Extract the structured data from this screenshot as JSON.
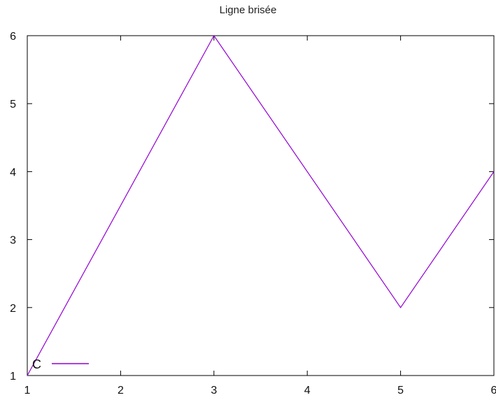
{
  "chart_data": {
    "type": "line",
    "title": "Ligne brisée",
    "xlabel": "",
    "ylabel": "",
    "xlim": [
      1,
      6
    ],
    "ylim": [
      1,
      6
    ],
    "x_ticks": [
      1,
      2,
      3,
      4,
      5,
      6
    ],
    "y_ticks": [
      1,
      2,
      3,
      4,
      5,
      6
    ],
    "grid": false,
    "legend_position": "bottom-left",
    "series": [
      {
        "name": "C",
        "color": "#9400d3",
        "x": [
          1,
          3,
          5,
          6
        ],
        "y": [
          1,
          6,
          2,
          4
        ]
      }
    ]
  }
}
